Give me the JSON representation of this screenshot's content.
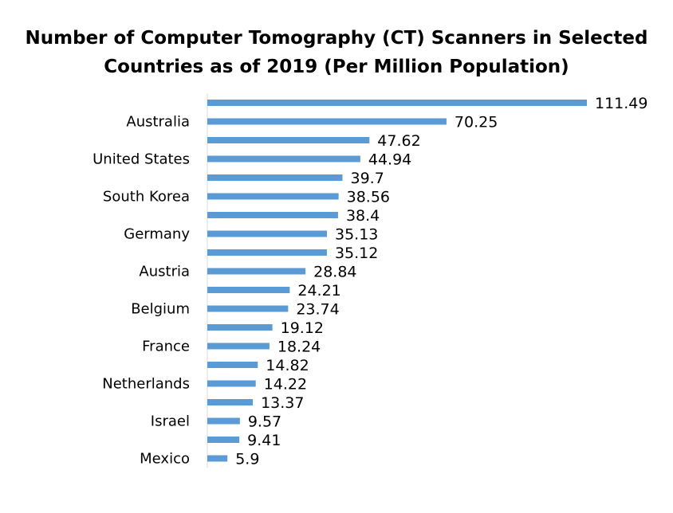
{
  "chart_data": {
    "type": "bar",
    "orientation": "horizontal",
    "title_lines": [
      "Number of Computer Tomography (CT) Scanners in Selected",
      "Countries as of 2019 (Per Million Population)"
    ],
    "xlabel": "",
    "ylabel": "",
    "grid": false,
    "legend": "none",
    "bar_color": "#5B9BD5",
    "categories": [
      "",
      "Australia",
      "",
      "United States",
      "",
      "South Korea",
      "",
      "Germany",
      "",
      "Austria",
      "",
      "Belgium",
      "",
      "France",
      "",
      "Netherlands",
      "",
      "Israel",
      "",
      "Mexico"
    ],
    "values": [
      111.49,
      70.25,
      47.62,
      44.94,
      39.7,
      38.56,
      38.4,
      35.13,
      35.12,
      28.84,
      24.21,
      23.74,
      19.12,
      18.24,
      14.82,
      14.22,
      13.37,
      9.57,
      9.41,
      5.9
    ],
    "value_labels": [
      "111.49",
      "70.25",
      "47.62",
      "44.94",
      "39.7",
      "38.56",
      "38.4",
      "35.13",
      "35.12",
      "28.84",
      "24.21",
      "23.74",
      "19.12",
      "18.24",
      "14.82",
      "14.22",
      "13.37",
      "9.57",
      "9.41",
      "5.9"
    ],
    "xlim": [
      0,
      111.49
    ]
  }
}
